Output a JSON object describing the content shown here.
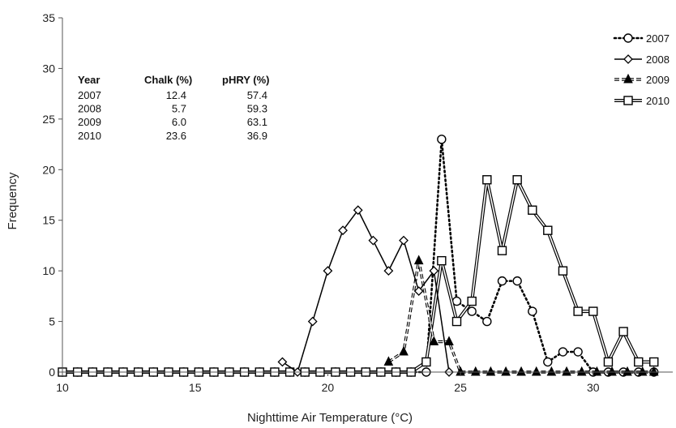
{
  "chart_data": {
    "type": "line",
    "xlabel": "Nighttime Air Temperature (°C)",
    "ylabel": "Frequency",
    "xlim": [
      10,
      33
    ],
    "ylim": [
      0,
      35
    ],
    "xticks": [
      10,
      15,
      20,
      25,
      30
    ],
    "yticks": [
      0,
      5,
      10,
      15,
      20,
      25,
      30,
      35
    ],
    "grid": "none",
    "legend_position": "top-right",
    "series": [
      {
        "name": "2007",
        "marker": "open-circle",
        "line": "dotted",
        "color": "#000000",
        "x": [
          10,
          10.57,
          11.14,
          11.71,
          12.29,
          12.86,
          13.43,
          14,
          14.57,
          15.14,
          15.71,
          16.29,
          16.86,
          17.43,
          18,
          18.57,
          19.14,
          19.71,
          20.29,
          20.86,
          21.43,
          22,
          22.57,
          23.14,
          23.71,
          24.29,
          24.86,
          25.43,
          26,
          26.57,
          27.14,
          27.71,
          28.29,
          28.86,
          29.43,
          30,
          30.57,
          31.14,
          31.71,
          32.29
        ],
        "y": [
          0,
          0,
          0,
          0,
          0,
          0,
          0,
          0,
          0,
          0,
          0,
          0,
          0,
          0,
          0,
          0,
          0,
          0,
          0,
          0,
          0,
          0,
          0,
          0,
          0,
          23,
          7,
          6,
          5,
          9,
          9,
          6,
          1,
          2,
          2,
          0,
          0,
          0,
          0,
          0
        ]
      },
      {
        "name": "2008",
        "marker": "open-diamond",
        "line": "solid",
        "color": "#000000",
        "x": [
          18.29,
          18.86,
          19.43,
          20,
          20.57,
          21.14,
          21.71,
          22.29,
          22.86,
          23.43,
          24,
          24.57
        ],
        "y": [
          1,
          0,
          5,
          10,
          14,
          16,
          13,
          10,
          13,
          8,
          10,
          0
        ]
      },
      {
        "name": "2009",
        "marker": "filled-triangle",
        "line": "dashed-double",
        "color": "#000000",
        "x": [
          22.29,
          22.86,
          23.43,
          24,
          24.57,
          25,
          25.57,
          26.14,
          26.71,
          27.29,
          27.86,
          28.43,
          29,
          29.57,
          30.14,
          30.71,
          31.29,
          31.86,
          32.29
        ],
        "y": [
          1,
          2,
          11,
          3,
          3,
          0,
          0,
          0,
          0,
          0,
          0,
          0,
          0,
          0,
          0,
          0,
          0,
          0,
          0
        ]
      },
      {
        "name": "2010",
        "marker": "open-square",
        "line": "double",
        "color": "#000000",
        "x": [
          10,
          10.57,
          11.14,
          11.71,
          12.29,
          12.86,
          13.43,
          14,
          14.57,
          15.14,
          15.71,
          16.29,
          16.86,
          17.43,
          18,
          18.57,
          19.14,
          19.71,
          20.29,
          20.86,
          21.43,
          22,
          22.57,
          23.14,
          23.71,
          24.29,
          24.86,
          25.43,
          26,
          26.57,
          27.14,
          27.71,
          28.29,
          28.86,
          29.43,
          30,
          30.57,
          31.14,
          31.71,
          32.29
        ],
        "y": [
          0,
          0,
          0,
          0,
          0,
          0,
          0,
          0,
          0,
          0,
          0,
          0,
          0,
          0,
          0,
          0,
          0,
          0,
          0,
          0,
          0,
          0,
          0,
          0,
          1,
          11,
          5,
          7,
          19,
          12,
          19,
          16,
          14,
          10,
          6,
          6,
          1,
          4,
          1,
          1
        ]
      }
    ],
    "table": {
      "headers": [
        "Year",
        "Chalk (%)",
        "pHRY (%)"
      ],
      "rows": [
        [
          "2007",
          "12.4",
          "57.4"
        ],
        [
          "2008",
          "5.7",
          "59.3"
        ],
        [
          "2009",
          "6.0",
          "63.1"
        ],
        [
          "2010",
          "23.6",
          "36.9"
        ]
      ]
    }
  }
}
